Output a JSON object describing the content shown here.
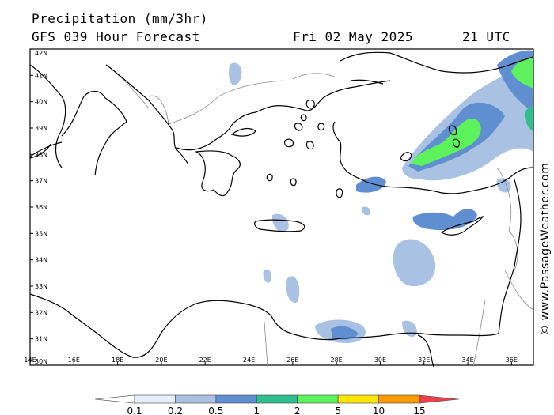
{
  "header": {
    "title": "Precipitation (mm/3hr)",
    "model": "GFS 039 Hour Forecast",
    "date": "Fri 02 May 2025",
    "time": "21 UTC"
  },
  "credit": "© www.PassageWeather.com",
  "map": {
    "lon_range": [
      14,
      37
    ],
    "lat_range": [
      30,
      42
    ],
    "lon_ticks": [
      "14E",
      "16E",
      "18E",
      "20E",
      "22E",
      "24E",
      "26E",
      "28E",
      "30E",
      "32E",
      "34E",
      "36E"
    ],
    "lat_ticks": [
      "42N",
      "41N",
      "40N",
      "39N",
      "38N",
      "37N",
      "36N",
      "35N",
      "34N",
      "33N",
      "32N",
      "31N",
      "30N"
    ]
  },
  "legend": {
    "labels": [
      "0.1",
      "0.2",
      "0.5",
      "1",
      "2",
      "5",
      "10",
      "15"
    ],
    "colors": [
      "#ffffff",
      "#e6eef8",
      "#a9c2e4",
      "#5f8fd1",
      "#2fbf8f",
      "#5cf25c",
      "#ffe600",
      "#ff9a00",
      "#e8414a"
    ]
  }
}
